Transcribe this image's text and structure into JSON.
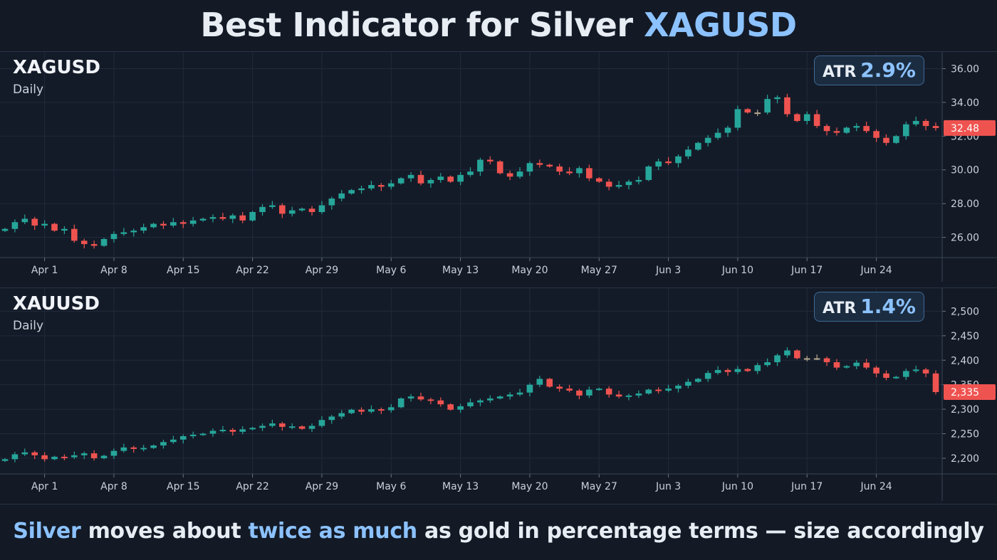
{
  "headline": {
    "text": "Best Indicator for Silver",
    "accent": "XAGUSD"
  },
  "footer": {
    "hl1": "Silver",
    "t1": " moves about ",
    "hl2": "twice as much",
    "t2": " as gold in percentage terms — size accordingly"
  },
  "colors": {
    "bullish": "#26a69a",
    "bearish": "#ef5350",
    "neutral": "#b5a88f",
    "accent": "#8cc2ff",
    "background": "#131a26",
    "grid": "#202a3a"
  },
  "chart_data": [
    {
      "type": "candlestick",
      "symbol": "XAGUSD",
      "timeframe": "Daily",
      "atr_label": "ATR",
      "atr_value": "2.9%",
      "last_price": "32.48",
      "y_ticks": [
        "26.00",
        "28.00",
        "30.00",
        "32.00",
        "34.00",
        "36.00"
      ],
      "ylim": [
        24.8,
        36.4
      ],
      "x_tick_labels": [
        "Apr 1",
        "Apr 8",
        "Apr 15",
        "Apr 22",
        "Apr 29",
        "May 6",
        "May 13",
        "May 20",
        "May 27",
        "Jun 3",
        "Jun 10",
        "Jun 17",
        "Jun 24"
      ],
      "x_tick_index": [
        4,
        11,
        18,
        25,
        32,
        39,
        46,
        53,
        60,
        67,
        74,
        81,
        88
      ],
      "closes": [
        26.5,
        26.9,
        27.1,
        26.7,
        26.8,
        26.4,
        26.5,
        25.8,
        25.6,
        25.5,
        25.9,
        26.2,
        26.3,
        26.4,
        26.6,
        26.8,
        26.7,
        26.9,
        26.8,
        27.0,
        27.1,
        27.2,
        27.1,
        27.3,
        27.0,
        27.5,
        27.8,
        27.9,
        27.4,
        27.6,
        27.7,
        27.5,
        27.9,
        28.3,
        28.6,
        28.8,
        28.9,
        29.1,
        29.0,
        29.2,
        29.5,
        29.7,
        29.2,
        29.4,
        29.6,
        29.3,
        29.7,
        29.9,
        30.6,
        30.5,
        29.8,
        29.6,
        29.9,
        30.4,
        30.3,
        30.2,
        29.9,
        29.8,
        30.1,
        29.5,
        29.3,
        29.0,
        29.1,
        29.3,
        29.4,
        30.2,
        30.5,
        30.4,
        30.8,
        31.2,
        31.6,
        31.9,
        32.2,
        32.5,
        33.6,
        33.4,
        33.4,
        34.2,
        34.3,
        33.3,
        32.9,
        33.3,
        32.6,
        32.3,
        32.2,
        32.5,
        32.6,
        32.3,
        31.9,
        31.6,
        32.0,
        32.7,
        32.9,
        32.6,
        32.48
      ],
      "ohlc_note": "close series"
    },
    {
      "type": "candlestick",
      "symbol": "XAUUSD",
      "timeframe": "Daily",
      "atr_label": "ATR",
      "atr_value": "1.4%",
      "last_price": "2,335",
      "y_ticks": [
        "2,200",
        "2,250",
        "2,300",
        "2,350",
        "2,400",
        "2,450",
        "2,500"
      ],
      "ylim": [
        2168,
        2518
      ],
      "x_tick_labels": [
        "Apr 1",
        "Apr 8",
        "Apr 15",
        "Apr 22",
        "Apr 29",
        "May 6",
        "May 13",
        "May 20",
        "May 27",
        "Jun 3",
        "Jun 10",
        "Jun 17",
        "Jun 24"
      ],
      "x_tick_index": [
        4,
        11,
        18,
        25,
        32,
        39,
        46,
        53,
        60,
        67,
        74,
        81,
        88
      ],
      "closes": [
        2198,
        2208,
        2212,
        2206,
        2198,
        2203,
        2202,
        2206,
        2210,
        2200,
        2205,
        2215,
        2222,
        2219,
        2221,
        2226,
        2233,
        2238,
        2245,
        2248,
        2250,
        2256,
        2258,
        2254,
        2259,
        2262,
        2266,
        2271,
        2264,
        2265,
        2260,
        2266,
        2278,
        2285,
        2292,
        2299,
        2295,
        2300,
        2298,
        2304,
        2322,
        2326,
        2320,
        2318,
        2310,
        2299,
        2306,
        2314,
        2318,
        2322,
        2326,
        2330,
        2334,
        2350,
        2362,
        2346,
        2342,
        2338,
        2328,
        2340,
        2342,
        2330,
        2326,
        2328,
        2332,
        2340,
        2338,
        2342,
        2348,
        2356,
        2362,
        2374,
        2380,
        2376,
        2382,
        2378,
        2390,
        2396,
        2410,
        2420,
        2404,
        2404,
        2404,
        2396,
        2385,
        2388,
        2395,
        2385,
        2373,
        2364,
        2366,
        2378,
        2381,
        2373,
        2335
      ],
      "ohlc_note": "close series"
    }
  ]
}
